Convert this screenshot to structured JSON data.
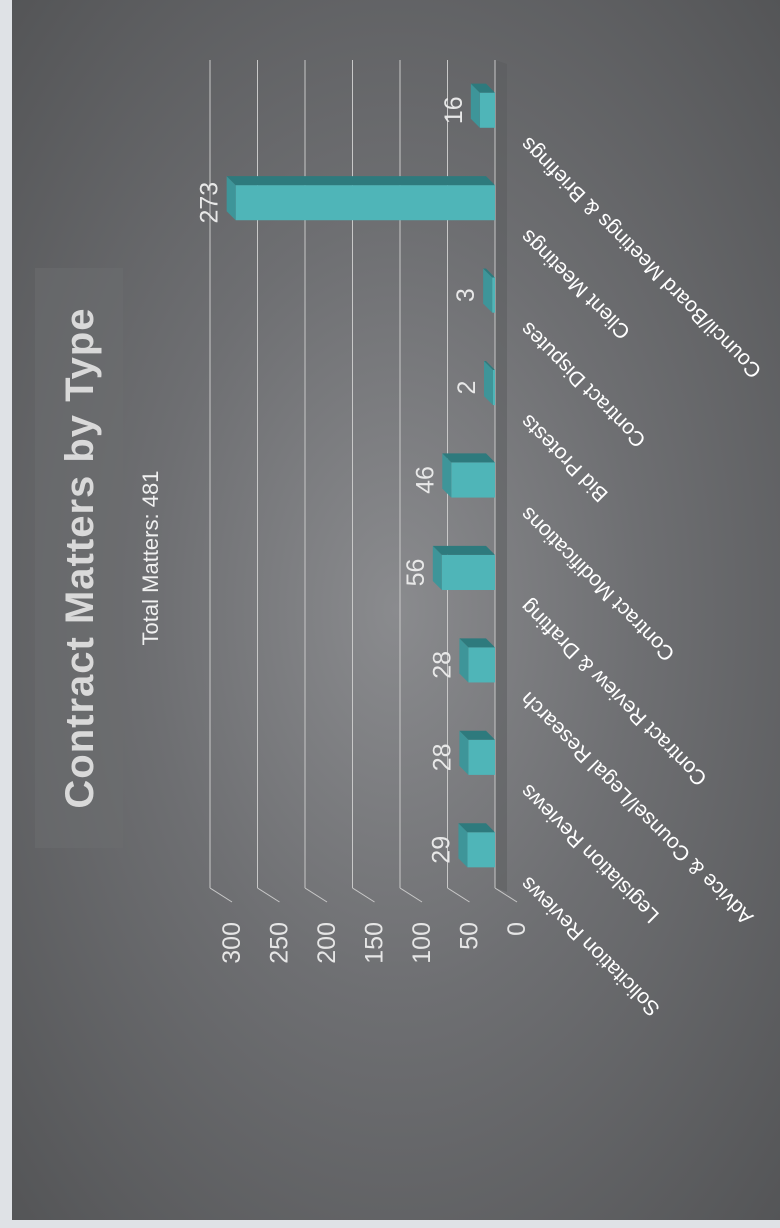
{
  "chart_data": {
    "type": "bar",
    "title": "Contract Matters by Type",
    "subtitle": "Total Matters: 481",
    "categories": [
      "Solicitation Reviews",
      "Legislation Reviews",
      "Advice & Counsel/Legal Research",
      "Contract Review & Drafting",
      "Contract Modifications",
      "Bid Protests",
      "Contract Disputes",
      "Client Meetings",
      "Council/Board Meetings & Briefings"
    ],
    "values": [
      29,
      28,
      28,
      56,
      46,
      2,
      3,
      273,
      16
    ],
    "data_labels": [
      "29",
      "28",
      "28",
      "56",
      "46",
      "2",
      "3",
      "273",
      "16"
    ],
    "y_ticks": [
      "0",
      "50",
      "100",
      "150",
      "200",
      "250",
      "300"
    ],
    "ylim": [
      0,
      300
    ],
    "orientation": "rotated 90 degrees counter-clockwise",
    "grid": true,
    "bar_color": "#4fb5b8"
  }
}
